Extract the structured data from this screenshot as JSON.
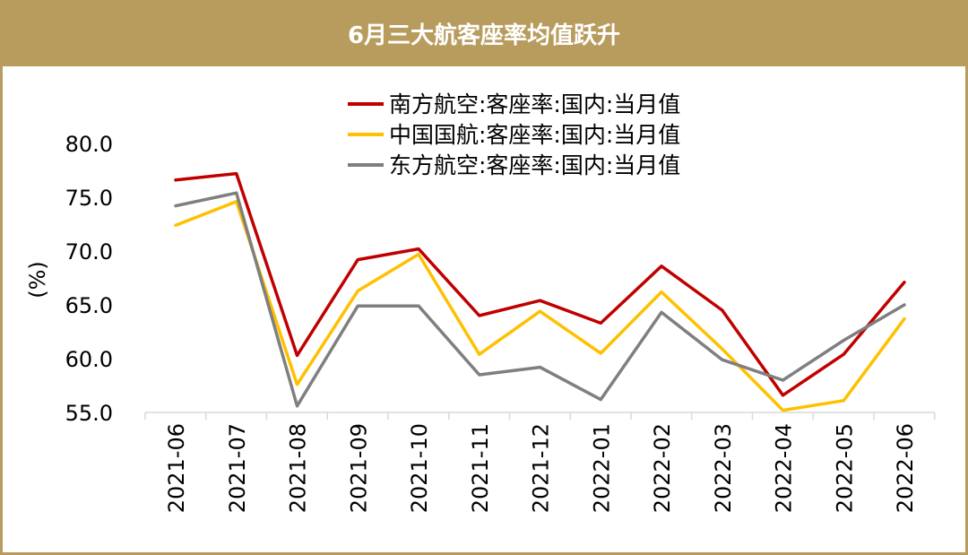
{
  "title": "6月三大航客座率均值跃升",
  "chart_data": {
    "type": "line",
    "ylabel": "(%)",
    "ylim": [
      55,
      80
    ],
    "yticks": [
      "80.0",
      "75.0",
      "70.0",
      "65.0",
      "60.0",
      "55.0"
    ],
    "ytick_values": [
      80,
      75,
      70,
      65,
      60,
      55
    ],
    "categories": [
      "2021-06",
      "2021-07",
      "2021-08",
      "2021-09",
      "2021-10",
      "2021-11",
      "2021-12",
      "2022-01",
      "2022-02",
      "2022-03",
      "2022-04",
      "2022-05",
      "2022-06"
    ],
    "series": [
      {
        "name": "南方航空:客座率:国内:当月值",
        "color": "#c00000",
        "values": [
          76.6,
          77.2,
          60.3,
          69.2,
          70.2,
          64.0,
          65.4,
          63.3,
          68.6,
          64.5,
          56.6,
          60.4,
          67.1
        ]
      },
      {
        "name": "中国国航:客座率:国内:当月值",
        "color": "#ffc000",
        "values": [
          72.4,
          74.6,
          57.6,
          66.3,
          69.7,
          60.4,
          64.4,
          60.5,
          66.2,
          60.9,
          55.2,
          56.1,
          63.7
        ]
      },
      {
        "name": "东方航空:客座率:国内:当月值",
        "color": "#7f7f7f",
        "values": [
          74.2,
          75.4,
          55.6,
          64.9,
          64.9,
          58.5,
          59.2,
          56.2,
          64.3,
          59.9,
          58.0,
          61.7,
          65.0
        ]
      }
    ],
    "legend_position": "top"
  }
}
